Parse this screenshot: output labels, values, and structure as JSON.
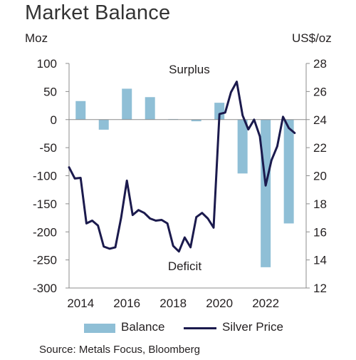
{
  "title": "Market Balance",
  "colors": {
    "bar": "#8fbfd6",
    "line": "#1b1a4d",
    "axis": "#8c8c8c",
    "text": "#231f20"
  },
  "legend": {
    "balance": "Balance",
    "silver": "Silver Price"
  },
  "source": "Source: Metals Focus, Bloomberg",
  "chart_data": {
    "type": "bar+line",
    "title": "Market Balance",
    "y_left": {
      "label": "Moz",
      "min": -300,
      "max": 100,
      "ticks": [
        100,
        50,
        0,
        -50,
        -100,
        -150,
        -200,
        -250,
        -300
      ]
    },
    "y_right": {
      "label": "US$/oz",
      "min": 12,
      "max": 28,
      "ticks": [
        28,
        26,
        24,
        22,
        20,
        18,
        16,
        14,
        12
      ]
    },
    "x": {
      "min": 2013.5,
      "max": 2023.75,
      "ticks": [
        2014,
        2016,
        2018,
        2020,
        2022
      ]
    },
    "annotations": [
      {
        "text": "Surplus",
        "x": 2018.7,
        "y": 82
      },
      {
        "text": "Deficit",
        "x": 2018.5,
        "y": -268
      }
    ],
    "series": [
      {
        "name": "Balance",
        "type": "bar",
        "axis": "left",
        "x": [
          2014,
          2015,
          2016,
          2017,
          2018,
          2019,
          2020,
          2021,
          2022,
          2023
        ],
        "values": [
          33,
          -18,
          55,
          40,
          1,
          -3,
          30,
          -96,
          -263,
          -185
        ]
      },
      {
        "name": "Silver Price",
        "type": "line",
        "axis": "right",
        "points": [
          [
            2013.5,
            20.6
          ],
          [
            2013.75,
            19.8
          ],
          [
            2014.0,
            19.85
          ],
          [
            2014.25,
            16.6
          ],
          [
            2014.5,
            16.8
          ],
          [
            2014.75,
            16.45
          ],
          [
            2015.0,
            14.95
          ],
          [
            2015.25,
            14.8
          ],
          [
            2015.5,
            14.9
          ],
          [
            2015.75,
            17.0
          ],
          [
            2016.0,
            19.65
          ],
          [
            2016.25,
            17.2
          ],
          [
            2016.5,
            17.55
          ],
          [
            2016.75,
            17.35
          ],
          [
            2017.0,
            16.95
          ],
          [
            2017.25,
            16.8
          ],
          [
            2017.5,
            16.85
          ],
          [
            2017.75,
            16.6
          ],
          [
            2018.0,
            15.0
          ],
          [
            2018.25,
            14.6
          ],
          [
            2018.5,
            15.6
          ],
          [
            2018.75,
            14.9
          ],
          [
            2019.0,
            17.05
          ],
          [
            2019.25,
            17.35
          ],
          [
            2019.5,
            16.95
          ],
          [
            2019.75,
            16.3
          ],
          [
            2020.0,
            24.4
          ],
          [
            2020.25,
            24.5
          ],
          [
            2020.5,
            25.95
          ],
          [
            2020.75,
            26.7
          ],
          [
            2021.0,
            24.3
          ],
          [
            2021.25,
            23.3
          ],
          [
            2021.5,
            24.0
          ],
          [
            2021.75,
            22.8
          ],
          [
            2022.0,
            19.3
          ],
          [
            2022.25,
            21.1
          ],
          [
            2022.5,
            22.1
          ],
          [
            2022.75,
            24.2
          ],
          [
            2023.0,
            23.4
          ],
          [
            2023.25,
            23.05
          ]
        ]
      }
    ]
  }
}
